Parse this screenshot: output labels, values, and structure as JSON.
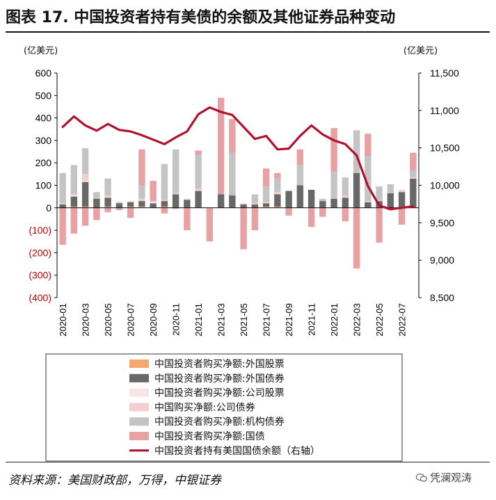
{
  "title": "图表 17. 中国投资者持有美债的余额及其他证券品种变动",
  "source": "资料来源：美国财政部，万得，中银证券",
  "watermark": "凭澜观涛",
  "chart_data": {
    "type": "bar",
    "stacked": true,
    "left_unit": "(亿美元)",
    "right_unit": "(亿美元)",
    "left_ticks": [
      "600",
      "500",
      "400",
      "300",
      "200",
      "100",
      "0",
      "(100)",
      "(200)",
      "(300)",
      "(400)"
    ],
    "right_ticks": [
      "11,500",
      "11,000",
      "10,500",
      "10,000",
      "9,500",
      "9,000",
      "8,500"
    ],
    "ylim_left": [
      -400,
      600
    ],
    "ylim_right": [
      8500,
      11500
    ],
    "x_tick_labels": [
      "2020-01",
      "2020-03",
      "2020-05",
      "2020-07",
      "2020-09",
      "2020-11",
      "2021-01",
      "2021-03",
      "2021-05",
      "2021-07",
      "2021-09",
      "2021-11",
      "2022-01",
      "2022-03",
      "2022-05",
      "2022-07"
    ],
    "categories": [
      "2020-01",
      "2020-02",
      "2020-03",
      "2020-04",
      "2020-05",
      "2020-06",
      "2020-07",
      "2020-08",
      "2020-09",
      "2020-10",
      "2020-11",
      "2020-12",
      "2021-01",
      "2021-02",
      "2021-03",
      "2021-04",
      "2021-05",
      "2021-06",
      "2021-07",
      "2021-08",
      "2021-09",
      "2021-10",
      "2021-11",
      "2021-12",
      "2022-01",
      "2022-02",
      "2022-03",
      "2022-04",
      "2022-05",
      "2022-06",
      "2022-07",
      "2022-08"
    ],
    "colors": {
      "foreign_stocks": "#f4a86c",
      "foreign_bonds": "#686868",
      "corporate_stocks": "#f8e6e6",
      "corporate_bonds": "#f2cfd0",
      "agency_bonds": "#c4c4c4",
      "treasuries": "#e8a2a4",
      "holdings_line": "#b0112d",
      "negative_tick": "#c00000"
    },
    "series": [
      {
        "name": "中国投资者购买净额:外国股票",
        "key": "foreign_stocks",
        "values": [
          0,
          5,
          5,
          0,
          5,
          0,
          5,
          5,
          0,
          5,
          0,
          0,
          0,
          0,
          0,
          0,
          0,
          0,
          5,
          5,
          0,
          0,
          0,
          0,
          0,
          0,
          0,
          0,
          0,
          0,
          0,
          0
        ]
      },
      {
        "name": "中国投资者购买净额:外国债券",
        "key": "foreign_bonds",
        "values": [
          15,
          45,
          110,
          40,
          40,
          20,
          20,
          25,
          20,
          25,
          60,
          35,
          75,
          0,
          60,
          55,
          15,
          15,
          15,
          55,
          75,
          100,
          80,
          30,
          40,
          45,
          155,
          25,
          30,
          65,
          70,
          130
        ]
      },
      {
        "name": "中国投资者购买净额:公司股票",
        "key": "corporate_stocks",
        "values": [
          0,
          5,
          5,
          0,
          0,
          0,
          0,
          0,
          5,
          0,
          0,
          0,
          0,
          0,
          0,
          0,
          0,
          0,
          0,
          0,
          0,
          0,
          0,
          0,
          0,
          0,
          0,
          0,
          0,
          0,
          0,
          0
        ]
      },
      {
        "name": "中国购买净额:公司债券",
        "key": "corporate_bonds",
        "values": [
          5,
          5,
          30,
          0,
          10,
          0,
          5,
          10,
          5,
          5,
          5,
          5,
          10,
          0,
          0,
          0,
          5,
          5,
          5,
          10,
          0,
          0,
          0,
          0,
          0,
          10,
          0,
          5,
          5,
          0,
          10,
          5
        ]
      },
      {
        "name": "中国投资者购买净额:机构债券",
        "key": "agency_bonds",
        "values": [
          135,
          130,
          115,
          30,
          75,
          5,
          0,
          60,
          0,
          160,
          195,
          0,
          150,
          0,
          0,
          190,
          0,
          40,
          70,
          60,
          0,
          90,
          0,
          10,
          120,
          80,
          190,
          200,
          60,
          40,
          0,
          30
        ]
      },
      {
        "name": "中国投资者购买净额:国债",
        "key": "treasuries",
        "values": [
          -165,
          -115,
          -80,
          -55,
          -20,
          -10,
          -45,
          160,
          90,
          -25,
          -5,
          -100,
          20,
          -150,
          430,
          150,
          -185,
          -100,
          80,
          25,
          -35,
          70,
          -85,
          -40,
          195,
          -60,
          -270,
          100,
          -155,
          -10,
          -75,
          80
        ]
      },
      {
        "name": "中国投资者持有美国国债余额（右轴）",
        "key": "holdings_line",
        "type": "line",
        "axis": "right",
        "values": [
          10780,
          10920,
          10800,
          10730,
          10820,
          10740,
          10720,
          10670,
          10610,
          10550,
          10640,
          10720,
          10950,
          11040,
          10980,
          10940,
          10780,
          10620,
          10660,
          10480,
          10490,
          10660,
          10800,
          10680,
          10600,
          10550,
          10400,
          9990,
          9730,
          9680,
          9700,
          9720
        ]
      }
    ]
  }
}
